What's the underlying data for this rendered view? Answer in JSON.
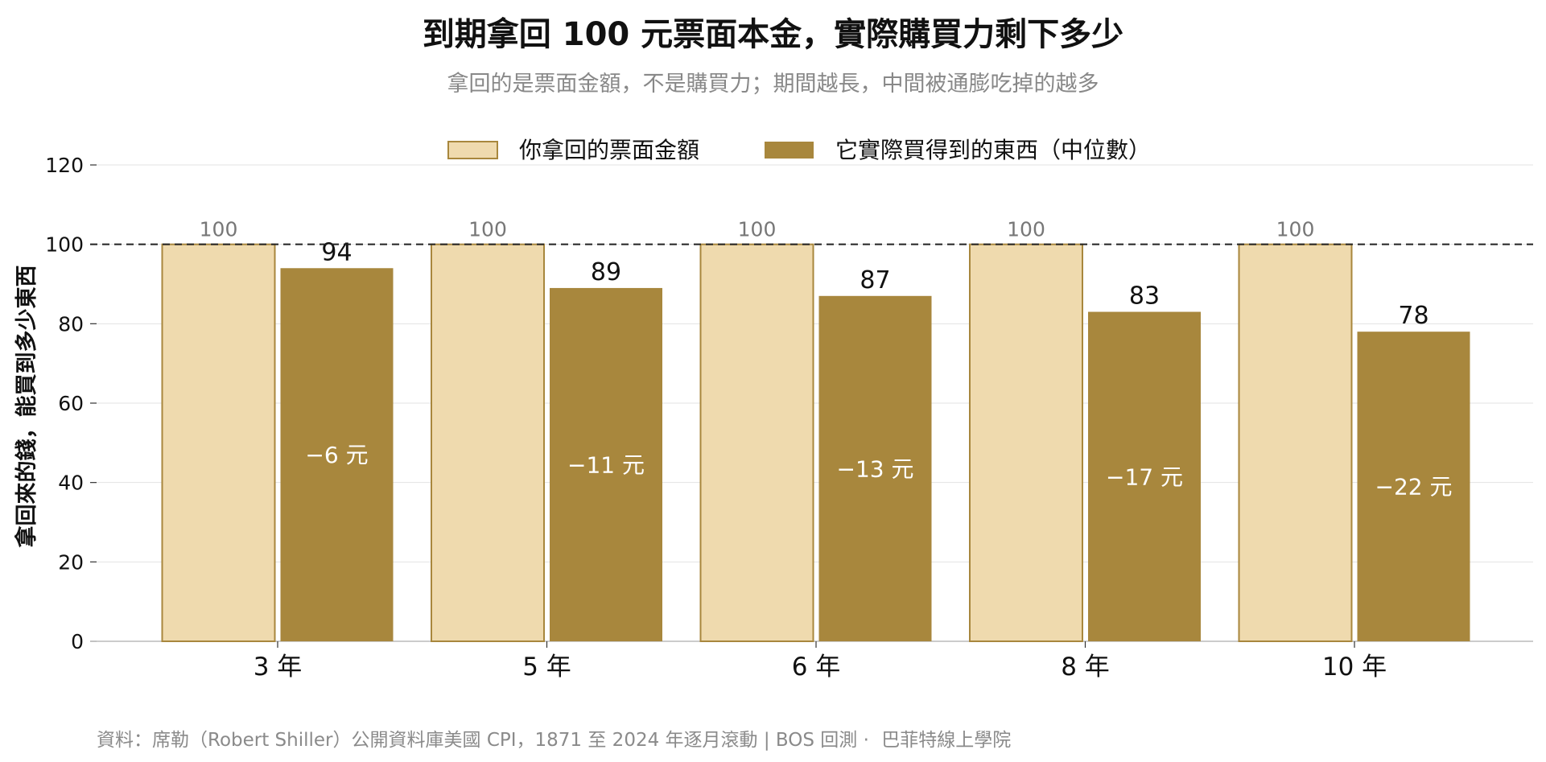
{
  "title": "到期拿回 100 元票面本金，實際購買力剩下多少",
  "subtitle": "拿回的是票面金額，不是購買力；期間越長，中間被通膨吃掉的越多",
  "source": "資料：席勒（Robert Shiller）公開資料庫美國 CPI，1871 至 2024 年逐月滾動 | BOS 回測 ·",
  "brand": "巴菲特線上學院",
  "colors": {
    "face": "#EFDAAE",
    "real": "#A8873D",
    "edge": "#A8873D",
    "grid": "#e3e3e3",
    "axis": "#bbbbbb"
  },
  "chart_data": {
    "type": "bar",
    "categories": [
      "3 年",
      "5 年",
      "6 年",
      "8 年",
      "10 年"
    ],
    "series": [
      {
        "name": "你拿回的票面金額",
        "values": [
          100,
          100,
          100,
          100,
          100
        ]
      },
      {
        "name": "它實際買得到的東西（中位數）",
        "values": [
          94,
          89,
          87,
          83,
          78
        ]
      }
    ],
    "loss_labels": [
      "−6 元",
      "−11 元",
      "−13 元",
      "−17 元",
      "−22 元"
    ],
    "value_labels_face": [
      "100",
      "100",
      "100",
      "100",
      "100"
    ],
    "value_labels_real": [
      "94",
      "89",
      "87",
      "83",
      "78"
    ],
    "ylabel": "拿回來的錢，能買到多少東西",
    "xlabel": "",
    "ylim": [
      0,
      120
    ],
    "yticks": [
      0,
      20,
      40,
      60,
      80,
      100,
      120
    ],
    "reference_line": 100,
    "grid": true,
    "legend_position": "top-center"
  }
}
